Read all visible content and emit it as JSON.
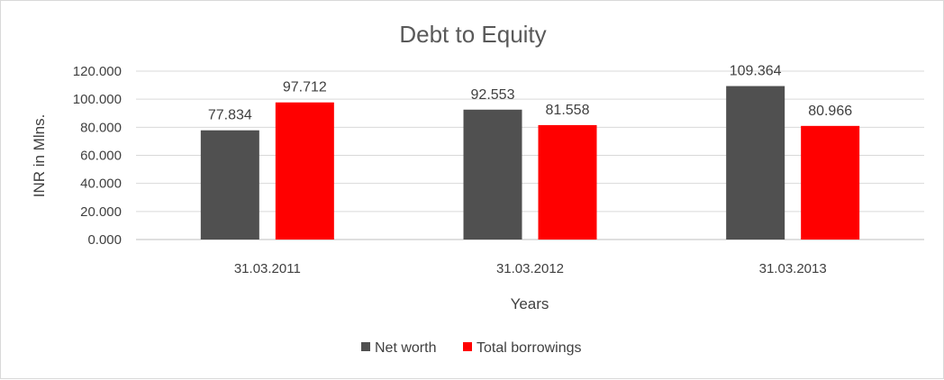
{
  "chart_data": {
    "type": "bar",
    "title": "Debt to Equity",
    "xlabel": "Years",
    "ylabel": "INR in Mlns.",
    "categories": [
      "31.03.2011",
      "31.03.2012",
      "31.03.2013"
    ],
    "series": [
      {
        "name": "Net worth",
        "values": [
          77.834,
          92.553,
          109.364
        ],
        "color": "#505050"
      },
      {
        "name": "Total borrowings",
        "values": [
          97.712,
          81.558,
          80.966
        ],
        "color": "#ff0000"
      }
    ],
    "data_labels": [
      [
        "77.834",
        "92.553",
        "109.364"
      ],
      [
        "97.712",
        "81.558",
        "80.966"
      ]
    ],
    "ylim": [
      0,
      120
    ],
    "yticks": [
      0,
      20,
      40,
      60,
      80,
      100,
      120
    ],
    "ytick_labels": [
      "0.000",
      "20.000",
      "40.000",
      "60.000",
      "80.000",
      "100.000",
      "120.000"
    ],
    "grid": true,
    "legend_position": "bottom"
  }
}
